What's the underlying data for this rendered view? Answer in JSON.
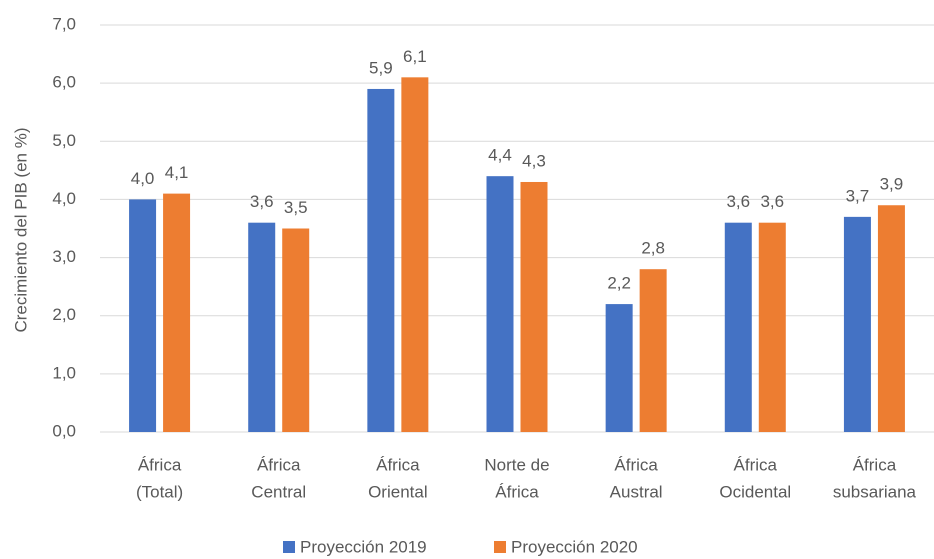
{
  "chart_data": {
    "type": "bar",
    "y_label": "Crecimiento del PIB (en %)",
    "categories": [
      [
        "África",
        "(Total)"
      ],
      [
        "África",
        "Central"
      ],
      [
        "África",
        "Oriental"
      ],
      [
        "Norte de",
        "África"
      ],
      [
        "África",
        "Austral"
      ],
      [
        "África",
        "Ocidental"
      ],
      [
        "África",
        "subsariana"
      ]
    ],
    "series": [
      {
        "name": "Proyección 2019",
        "color": "#4472c4",
        "values": [
          4.0,
          3.6,
          5.9,
          4.4,
          2.2,
          3.6,
          3.7
        ],
        "value_labels": [
          "4,0",
          "3,6",
          "5,9",
          "4,4",
          "2,2",
          "3,6",
          "3,7"
        ]
      },
      {
        "name": "Proyección 2020",
        "color": "#ed7d31",
        "values": [
          4.1,
          3.5,
          6.1,
          4.3,
          2.8,
          3.6,
          3.9
        ],
        "value_labels": [
          "4,1",
          "3,5",
          "6,1",
          "4,3",
          "2,8",
          "3,6",
          "3,9"
        ]
      }
    ],
    "ylim": [
      0,
      7
    ],
    "yticks": [
      {
        "value": 0,
        "label": "0,0"
      },
      {
        "value": 1,
        "label": "1,0"
      },
      {
        "value": 2,
        "label": "2,0"
      },
      {
        "value": 3,
        "label": "3,0"
      },
      {
        "value": 4,
        "label": "4,0"
      },
      {
        "value": 5,
        "label": "5,0"
      },
      {
        "value": 6,
        "label": "6,0"
      },
      {
        "value": 7,
        "label": "7,0"
      }
    ],
    "grid": true,
    "legend": "bottom"
  }
}
